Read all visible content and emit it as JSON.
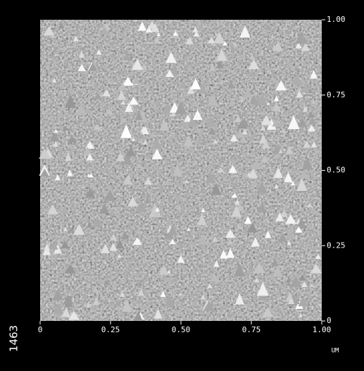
{
  "chart_data": {
    "type": "image",
    "side_label": "1463",
    "x_unit": "UM",
    "xlim": [
      0,
      1
    ],
    "ylim": [
      0,
      1
    ],
    "xticks": [
      0,
      0.25,
      {
        "value": 0.5,
        "label": "0.50"
      },
      0.75,
      {
        "value": 1,
        "label": "1.00"
      }
    ],
    "yticks": [
      0,
      0.25,
      {
        "value": 0.5,
        "label": "0.50"
      },
      0.75,
      {
        "value": 1,
        "label": "1.00"
      }
    ]
  }
}
